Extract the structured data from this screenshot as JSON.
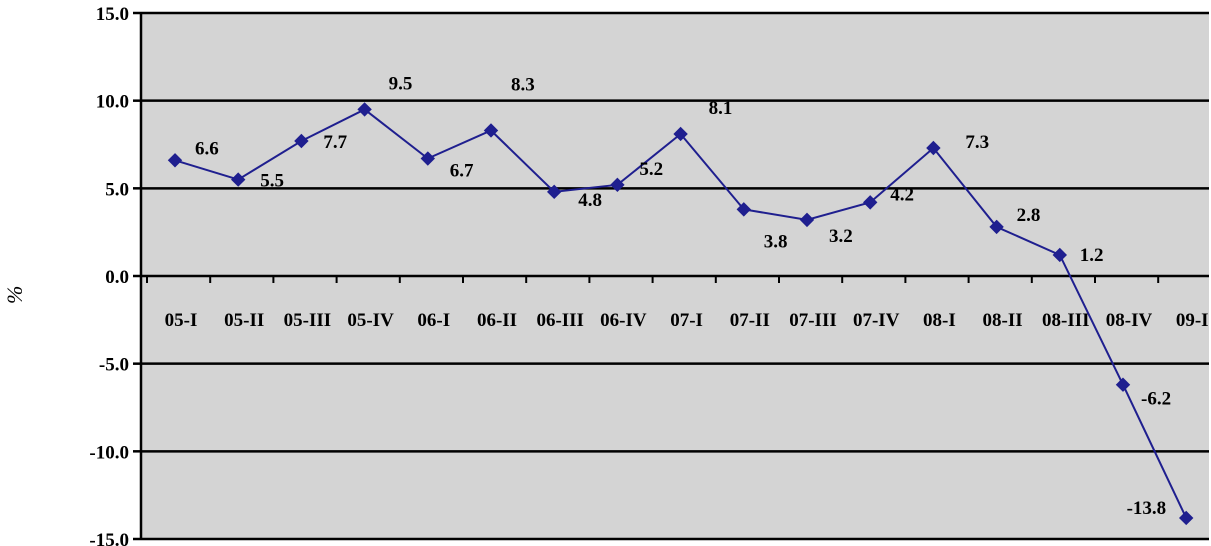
{
  "chart_data": {
    "type": "line",
    "title": "",
    "xlabel": "",
    "ylabel": "%",
    "ylim": [
      -15,
      15
    ],
    "y_ticks": [
      "15.0",
      "10.0",
      "5.0",
      "0.0",
      "-5.0",
      "-10.0",
      "-15.0"
    ],
    "y_tick_values": [
      15,
      10,
      5,
      0,
      -5,
      -10,
      -15
    ],
    "categories": [
      "05-I",
      "05-II",
      "05-III",
      "05-IV",
      "06-I",
      "06-II",
      "06-III",
      "06-IV",
      "07-I",
      "07-II",
      "07-III",
      "07-IV",
      "08-I",
      "08-II",
      "08-III",
      "08-IV",
      "09-I"
    ],
    "series": [
      {
        "values": [
          6.6,
          5.5,
          7.7,
          9.5,
          6.7,
          8.3,
          4.8,
          5.2,
          8.1,
          3.8,
          3.2,
          4.2,
          7.3,
          2.8,
          1.2,
          -6.2,
          -13.8
        ],
        "labels": [
          "6.6",
          "5.5",
          "7.7",
          "9.5",
          "6.7",
          "8.3",
          "4.8",
          "5.2",
          "8.1",
          "3.8",
          "3.2",
          "4.2",
          "7.3",
          "2.8",
          "1.2",
          "-6.2",
          "-13.8"
        ]
      }
    ],
    "grid": true,
    "legend": "none",
    "colors": {
      "plot_background": "#d4d4d4",
      "line": "#1f1f8f",
      "marker": "#1f1f8f",
      "gridline": "#000000",
      "axis": "#000000"
    }
  }
}
